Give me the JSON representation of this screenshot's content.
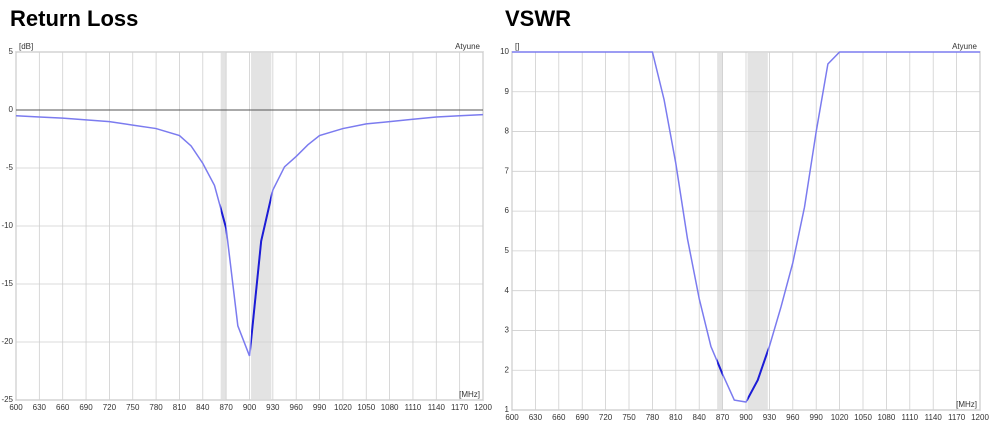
{
  "chart_data": [
    {
      "type": "line",
      "title": "Return Loss",
      "y_unit": "[dB]",
      "x_unit": "[MHz]",
      "brand": "Atyune",
      "x": [
        600,
        630,
        660,
        690,
        720,
        750,
        780,
        810,
        825,
        840,
        855,
        870,
        885,
        900,
        915,
        930,
        945,
        960,
        975,
        990,
        1020,
        1050,
        1080,
        1110,
        1140,
        1170,
        1200
      ],
      "series": [
        {
          "name": "Return Loss",
          "color": "#7b7bef",
          "highlight_color": "#1c1cd6",
          "values": [
            -0.5,
            -0.6,
            -0.7,
            -0.85,
            -1.0,
            -1.3,
            -1.6,
            -2.2,
            -3.1,
            -4.6,
            -6.5,
            -10.2,
            -18.6,
            -21.2,
            -11.3,
            -6.9,
            -4.9,
            -4.0,
            -3.0,
            -2.2,
            -1.6,
            -1.2,
            -1.0,
            -0.8,
            -0.6,
            -0.5,
            -0.4
          ]
        }
      ],
      "bands": [
        [
          863,
          870
        ],
        [
          902,
          928
        ]
      ],
      "band_color": "#e3e3e3",
      "xlim": [
        600,
        1200
      ],
      "xticks": [
        600,
        630,
        660,
        690,
        720,
        750,
        780,
        810,
        840,
        870,
        900,
        930,
        960,
        990,
        1020,
        1050,
        1080,
        1110,
        1140,
        1170,
        1200
      ],
      "ylim": [
        -25,
        5
      ],
      "yticks": [
        -25,
        -20,
        -15,
        -10,
        -5,
        0,
        5
      ],
      "grid": true
    },
    {
      "type": "line",
      "title": "VSWR",
      "y_unit": "[]",
      "x_unit": "[MHz]",
      "brand": "Atyune",
      "x": [
        600,
        630,
        660,
        690,
        720,
        750,
        780,
        795,
        810,
        825,
        840,
        855,
        870,
        885,
        900,
        915,
        930,
        945,
        960,
        975,
        990,
        1005,
        1020,
        1050,
        1080,
        1110,
        1140,
        1170,
        1200
      ],
      "series": [
        {
          "name": "VSWR",
          "color": "#7b7bef",
          "highlight_color": "#1c1cd6",
          "values": [
            10,
            10,
            10,
            10,
            10,
            10,
            10,
            8.8,
            7.2,
            5.3,
            3.8,
            2.6,
            1.9,
            1.25,
            1.2,
            1.75,
            2.6,
            3.6,
            4.7,
            6.1,
            8.0,
            9.7,
            10,
            10,
            10,
            10,
            10,
            10,
            10
          ]
        }
      ],
      "bands": [
        [
          863,
          870
        ],
        [
          902,
          928
        ]
      ],
      "band_color": "#e3e3e3",
      "xlim": [
        600,
        1200
      ],
      "xticks": [
        600,
        630,
        660,
        690,
        720,
        750,
        780,
        810,
        840,
        870,
        900,
        930,
        960,
        990,
        1020,
        1050,
        1080,
        1110,
        1140,
        1170,
        1200
      ],
      "ylim": [
        1,
        10
      ],
      "yticks": [
        1,
        2,
        3,
        4,
        5,
        6,
        7,
        8,
        9,
        10
      ],
      "grid": true
    }
  ]
}
